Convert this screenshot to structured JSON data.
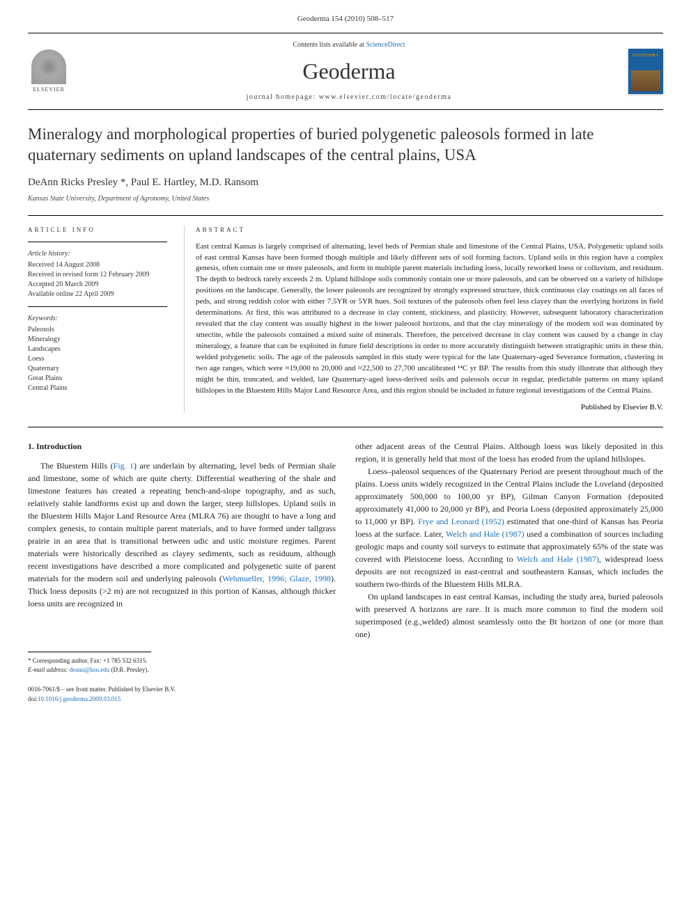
{
  "page_header": "Geoderma 154 (2010) 508–517",
  "journal_block": {
    "contents_prefix": "Contents lists available at ",
    "contents_link": "ScienceDirect",
    "journal_name": "Geoderma",
    "homepage_prefix": "journal homepage: ",
    "homepage_url": "www.elsevier.com/locate/geoderma",
    "elsevier_label": "ELSEVIER",
    "cover_label": "GEODERMA"
  },
  "article": {
    "title": "Mineralogy and morphological properties of buried polygenetic paleosols formed in late quaternary sediments on upland landscapes of the central plains, USA",
    "authors": "DeAnn Ricks Presley *, Paul E. Hartley, M.D. Ransom",
    "affiliation": "Kansas State University, Department of Agronomy, United States"
  },
  "info": {
    "heading": "ARTICLE INFO",
    "history_label": "Article history:",
    "received": "Received 14 August 2008",
    "revised": "Received in revised form 12 February 2009",
    "accepted": "Accepted 20 March 2009",
    "online": "Available online 22 April 2009",
    "keywords_label": "Keywords:",
    "keywords": [
      "Paleosols",
      "Mineralogy",
      "Landscapes",
      "Loess",
      "Quaternary",
      "Great Plains",
      "Central Plains"
    ]
  },
  "abstract": {
    "heading": "ABSTRACT",
    "text": "East central Kansas is largely comprised of alternating, level beds of Permian shale and limestone of the Central Plains, USA. Polygenetic upland soils of east central Kansas have been formed though multiple and likely different sets of soil forming factors. Upland soils in this region have a complex genesis, often contain one or more paleosols, and form in multiple parent materials including loess, locally reworked loess or colluvium, and residuum. The depth to bedrock rarely exceeds 2 m. Upland hillslope soils commonly contain one or more paleosols, and can be observed on a variety of hillslope positions on the landscape. Generally, the lower paleosols are recognized by strongly expressed structure, thick continuous clay coatings on all faces of peds, and strong reddish color with either 7.5YR or 5YR hues. Soil textures of the paleosols often feel less clayey than the overlying horizons in field determinations. At first, this was attributed to a decrease in clay content, stickiness, and plasticity. However, subsequent laboratory characterization revealed that the clay content was usually highest in the lower paleosol horizons, and that the clay mineralogy of the modern soil was dominated by smectite, while the paleosols contained a mixed suite of minerals. Therefore, the perceived decrease in clay content was caused by a change in clay mineralogy, a feature that can be exploited in future field descriptions in order to more accurately distinguish between stratigraphic units in these thin, welded polygenetic soils. The age of the paleosols sampled in this study were typical for the late Quaternary-aged Severance formation, clustering in two age ranges, which were ≈19,000 to 20,000 and ≈22,500 to 27,700 uncalibrated ¹⁴C yr BP. The results from this study illustrate that although they might be thin, truncated, and welded, late Quaternary-aged loess-derived soils and paleosols occur in regular, predictable patterns on many upland hillslopes in the Bluestem Hills Major Land Resource Area, and this region should be included in future regional investigations of the Central Plains.",
    "publisher": "Published by Elsevier B.V."
  },
  "body": {
    "section_heading": "1. Introduction",
    "left_paras": [
      "The Bluestem Hills (Fig. 1) are underlain by alternating, level beds of Permian shale and limestone, some of which are quite cherty. Differential weathering of the shale and limestone features has created a repeating bench-and-slope topography, and as such, relatively stable landforms exist up and down the larger, steep hillslopes. Upland soils in the Bluestem Hills Major Land Resource Area (MLRA 76) are thought to have a long and complex genesis, to contain multiple parent materials, and to have formed under tallgrass prairie in an area that is transitional between udic and ustic moisture regimes. Parent materials were historically described as clayey sediments, such as residuum, although recent investigations have described a more complicated and polygenetic suite of parent materials for the modern soil and underlying paleosols (Wehmueller, 1996; Glaze, 1998). Thick loess deposits (>2 m) are not recognized in this portion of Kansas, although thicker loess units are recognized in"
    ],
    "right_paras": [
      "other adjacent areas of the Central Plains. Although loess was likely deposited in this region, it is generally held that most of the loess has eroded from the upland hillslopes.",
      "Loess–paleosol sequences of the Quaternary Period are present throughout much of the plains. Loess units widely recognized in the Central Plains include the Loveland (deposited approximately 500,000 to 100,00 yr BP), Gilman Canyon Formation (deposited approximately 41,000 to 20,000 yr BP), and Peoria Loess (deposited approximately 25,000 to 11,000 yr BP). Frye and Leonard (1952) estimated that one-third of Kansas has Peoria loess at the surface. Later, Welch and Hale (1987) used a combination of sources including geologic maps and county soil surveys to estimate that approximately 65% of the state was covered with Pleistocene loess. According to Welch and Hale (1987), widespread loess deposits are not recognized in east-central and southeastern Kansas, which includes the southern two-thirds of the Bluestem Hills MLRA.",
      "On upland landscapes in east central Kansas, including the study area, buried paleosols with preserved A horizons are rare. It is much more common to find the modern soil superimposed (e.g.,welded) almost seamlessly onto the Bt horizon of one (or more than one)"
    ],
    "left_links": [
      {
        "text": "Fig. 1"
      },
      {
        "text": "Wehmueller, 1996; Glaze, 1998"
      }
    ],
    "right_links": [
      {
        "text": "Frye and Leonard (1952)"
      },
      {
        "text": "Welch and Hale (1987)"
      },
      {
        "text": "Welch and Hale (1987)"
      }
    ]
  },
  "footnote": {
    "corr_label": "* Corresponding author. Fax: +1 785 532 6315.",
    "email_label": "E-mail address:",
    "email": "deann@ksu.edu",
    "email_suffix": "(D.R. Presley)."
  },
  "footer": {
    "copyright": "0016-7061/$ – see front matter. Published by Elsevier B.V.",
    "doi_prefix": "doi:",
    "doi": "10.1016/j.geoderma.2009.03.015"
  },
  "colors": {
    "link": "#1b6fb8",
    "text": "#222222",
    "cover_bg": "#1b5f9e",
    "cover_title": "#d9a000"
  },
  "typography": {
    "body_fontsize_pt": 12,
    "abstract_fontsize_pt": 11,
    "title_fontsize_pt": 23,
    "journal_name_fontsize_pt": 32
  }
}
